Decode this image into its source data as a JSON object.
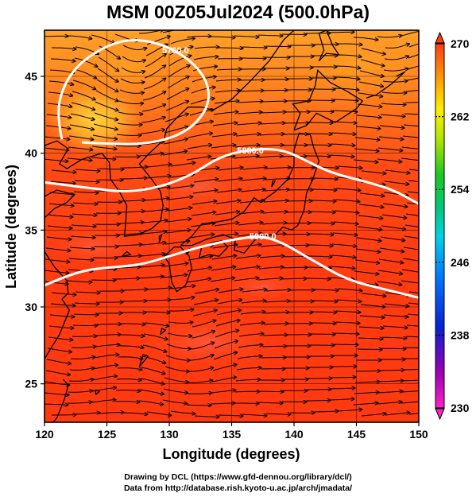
{
  "title": "MSM 00Z05Jul2024 (500.0hPa)",
  "map": {
    "lon_range": [
      120,
      150
    ],
    "lat_range": [
      22.5,
      48
    ],
    "x_axis": {
      "label": "Longitude (degrees)",
      "ticks": [
        120,
        125,
        130,
        135,
        140,
        145,
        150
      ],
      "tick_labels": [
        "120",
        "125",
        "130",
        "135",
        "140",
        "145",
        "150"
      ]
    },
    "y_axis": {
      "label": "Latitude  (degrees)",
      "ticks": [
        25,
        30,
        35,
        40,
        45
      ],
      "tick_labels": [
        "25",
        "30",
        "35",
        "40",
        "45"
      ]
    },
    "gridlines": true,
    "contours": [
      {
        "value": "5760.0",
        "label": "5760.0",
        "color": "#ffffff",
        "points": [
          [
            121.4,
            40.9
          ],
          [
            121.0,
            42.4
          ],
          [
            121.4,
            44.2
          ],
          [
            122.6,
            45.7
          ],
          [
            124.5,
            46.8
          ],
          [
            126.5,
            47.4
          ],
          [
            128.5,
            47.3
          ],
          [
            130.5,
            46.7
          ],
          [
            132.3,
            45.6
          ],
          [
            133.2,
            44.3
          ],
          [
            133.1,
            43.0
          ],
          [
            132.0,
            41.8
          ],
          [
            130.3,
            41.0
          ],
          [
            128.0,
            40.6
          ],
          [
            125.5,
            40.6
          ],
          [
            123.0,
            40.7
          ]
        ]
      },
      {
        "value": "5880.0",
        "label": "5880.0",
        "color": "#ffffff",
        "points": [
          [
            120,
            38.1
          ],
          [
            122,
            37.9
          ],
          [
            124,
            37.7
          ],
          [
            126,
            37.5
          ],
          [
            128,
            37.6
          ],
          [
            130,
            38.0
          ],
          [
            132,
            38.7
          ],
          [
            133.5,
            39.5
          ],
          [
            135,
            40.0
          ],
          [
            136.5,
            40.2
          ],
          [
            138,
            40.3
          ],
          [
            139.5,
            40.1
          ],
          [
            141,
            39.5
          ],
          [
            142.5,
            38.9
          ],
          [
            144,
            38.5
          ],
          [
            146,
            38.1
          ],
          [
            148,
            37.6
          ],
          [
            150,
            36.7
          ]
        ]
      },
      {
        "value": "5900.0",
        "label": "5900.0",
        "color": "#ffffff",
        "points": [
          [
            120,
            31.4
          ],
          [
            122,
            32.1
          ],
          [
            124,
            32.5
          ],
          [
            126,
            32.6
          ],
          [
            128,
            32.8
          ],
          [
            130,
            33.3
          ],
          [
            132,
            33.8
          ],
          [
            134,
            34.2
          ],
          [
            136,
            34.5
          ],
          [
            137.5,
            34.6
          ],
          [
            139,
            34.2
          ],
          [
            140.5,
            33.5
          ],
          [
            142,
            32.8
          ],
          [
            143.5,
            32.1
          ],
          [
            145,
            31.6
          ],
          [
            147,
            31.2
          ],
          [
            149,
            30.8
          ],
          [
            150,
            30.6
          ]
        ]
      }
    ]
  },
  "colorbar": {
    "min": 230,
    "max": 270,
    "tick_values": [
      270,
      262,
      254,
      246,
      238,
      230
    ],
    "tick_labels": [
      "270",
      "262",
      "254",
      "246",
      "238",
      "230"
    ]
  },
  "credits": {
    "line1": "Drawing by DCL (https://www.gfd-dennou.org/library/dcl/)",
    "line2": "Data from http://database.rish.kyoto-u.ac.jp/arch/jmadata/"
  }
}
